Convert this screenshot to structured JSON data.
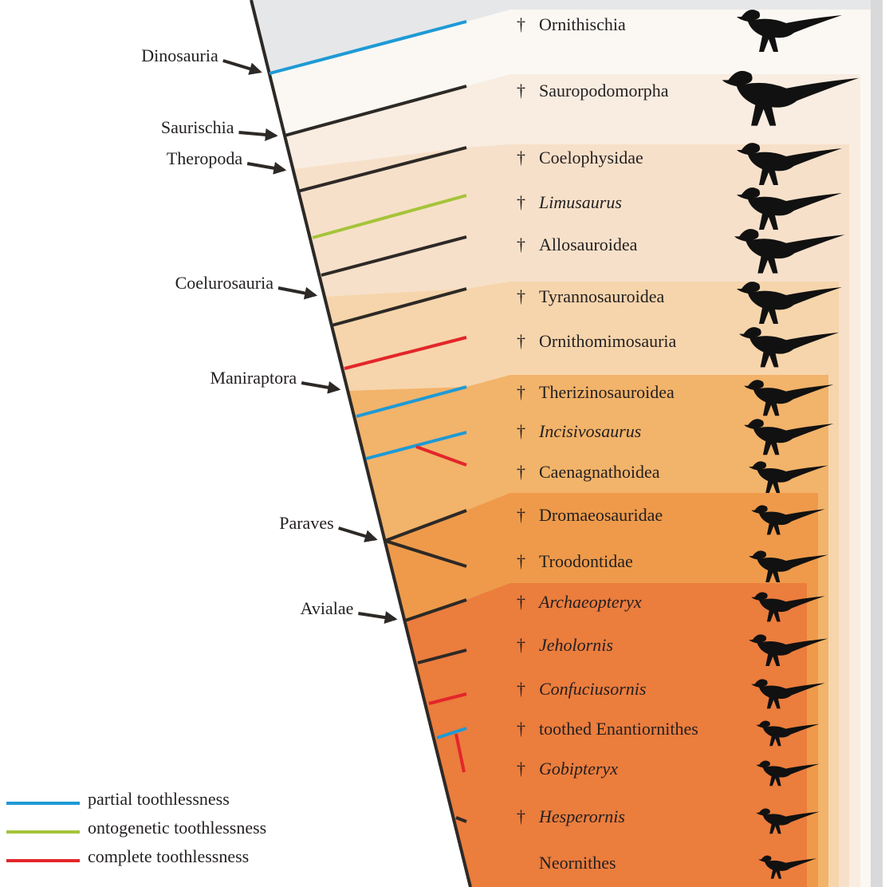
{
  "extinct_marker": "†",
  "clades": [
    {
      "label": "Dinosauria"
    },
    {
      "label": "Saurischia"
    },
    {
      "label": "Theropoda"
    },
    {
      "label": "Coelurosauria"
    },
    {
      "label": "Maniraptora"
    },
    {
      "label": "Paraves"
    },
    {
      "label": "Avialae"
    }
  ],
  "taxa": [
    {
      "name": "Ornithischia",
      "italic": false,
      "extinct": true,
      "branch_color": "#1e9ad6"
    },
    {
      "name": "Sauropodomorpha",
      "italic": false,
      "extinct": true,
      "branch_color": "#2d2926"
    },
    {
      "name": "Coelophysidae",
      "italic": false,
      "extinct": true,
      "branch_color": "#2d2926"
    },
    {
      "name": "Limusaurus",
      "italic": true,
      "extinct": true,
      "branch_color": "#a5c43a"
    },
    {
      "name": "Allosauroidea",
      "italic": false,
      "extinct": true,
      "branch_color": "#2d2926"
    },
    {
      "name": "Tyrannosauroidea",
      "italic": false,
      "extinct": true,
      "branch_color": "#2d2926"
    },
    {
      "name": "Ornithomimosauria",
      "italic": false,
      "extinct": true,
      "branch_color": "#e3262a"
    },
    {
      "name": "Therizinosauroidea",
      "italic": false,
      "extinct": true,
      "branch_color": "#1e9ad6"
    },
    {
      "name": "Incisivosaurus",
      "italic": true,
      "extinct": true,
      "branch_color": "#1e9ad6"
    },
    {
      "name": "Caenagnathoidea",
      "italic": false,
      "extinct": true,
      "branch_color": "#e3262a"
    },
    {
      "name": "Dromaeosauridae",
      "italic": false,
      "extinct": true,
      "branch_color": "#2d2926"
    },
    {
      "name": "Troodontidae",
      "italic": false,
      "extinct": true,
      "branch_color": "#2d2926"
    },
    {
      "name": "Archaeopteryx",
      "italic": true,
      "extinct": true,
      "branch_color": "#2d2926"
    },
    {
      "name": "Jeholornis",
      "italic": true,
      "extinct": true,
      "branch_color": "#2d2926"
    },
    {
      "name": "Confuciusornis",
      "italic": true,
      "extinct": true,
      "branch_color": "#e3262a"
    },
    {
      "name": "toothed Enantiornithes",
      "italic": false,
      "extinct": true,
      "branch_color": "#1e9ad6"
    },
    {
      "name": "Gobipteryx",
      "italic": true,
      "extinct": true,
      "branch_color": "#e3262a"
    },
    {
      "name": "Hesperornis",
      "italic": true,
      "extinct": true,
      "branch_color": "#2d2926"
    },
    {
      "name": "Neornithes",
      "italic": false,
      "extinct": false,
      "branch_color": "#2d2926"
    }
  ],
  "legend": [
    {
      "label": "partial toothlessness",
      "color": "#1e9ad6"
    },
    {
      "label": "ontogenetic toothlessness",
      "color": "#a5c43a"
    },
    {
      "label": "complete toothlessness",
      "color": "#e3262a"
    }
  ]
}
